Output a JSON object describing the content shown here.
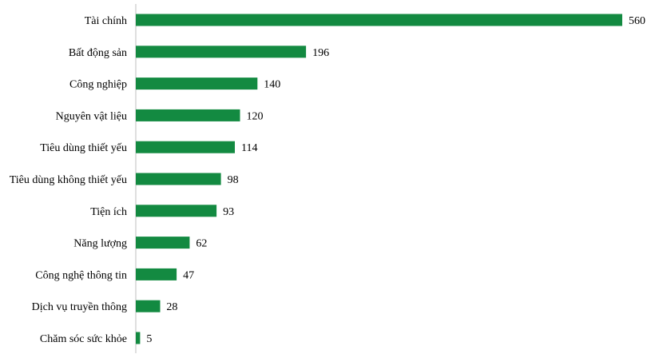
{
  "chart_data": {
    "type": "bar",
    "orientation": "horizontal",
    "categories": [
      "Tài chính",
      "Bất động sản",
      "Công nghiệp",
      "Nguyên vật liệu",
      "Tiêu dùng thiết yếu",
      "Tiêu dùng không thiết yếu",
      "Tiện ích",
      "Năng lượng",
      "Công nghệ thông tin",
      "Dịch vụ truyền thông",
      "Chăm sóc sức khỏe"
    ],
    "values": [
      560,
      196,
      140,
      120,
      114,
      98,
      93,
      62,
      47,
      28,
      5
    ],
    "data_labels": [
      "560",
      "196",
      "140",
      "120",
      "114",
      "98",
      "93",
      "62",
      "47",
      "28",
      "5"
    ],
    "title": "",
    "xlabel": "",
    "ylabel": "",
    "xlim": [
      0,
      560
    ],
    "grid": false,
    "legend": "none",
    "bar_color": "#138a41"
  }
}
